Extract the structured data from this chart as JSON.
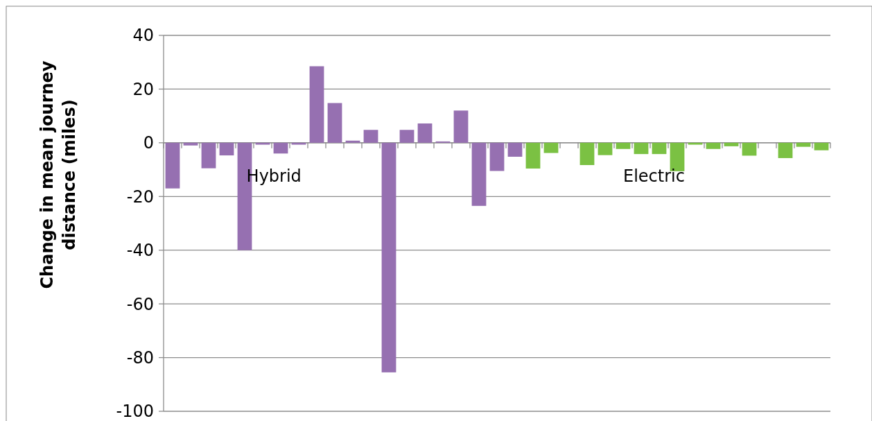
{
  "chart_data": {
    "type": "bar",
    "ylabel": "Change in mean journey distance (miles)",
    "categories": [
      null,
      null,
      null,
      null,
      null,
      null,
      null,
      null,
      null,
      null,
      null,
      null,
      null,
      null,
      null,
      null,
      null,
      null,
      null,
      null,
      null,
      null,
      null,
      null,
      null,
      null,
      null,
      null,
      null,
      null,
      null,
      null,
      null,
      null,
      null,
      null,
      null
    ],
    "values": [
      -17,
      -1,
      -9.5,
      -4.7,
      -40,
      -0.7,
      -4,
      -0.7,
      28.5,
      14.8,
      0.8,
      4.8,
      -85.5,
      4.8,
      7.2,
      0.5,
      12,
      -23.5,
      -10.5,
      -5.2,
      -9.6,
      -3.8,
      null,
      -8.3,
      -4.6,
      -2.3,
      -4.2,
      -4.2,
      -10.6,
      -0.7,
      -2.3,
      -1.3,
      -4.8,
      null,
      -5.7,
      -1.5,
      -2.8
    ],
    "colors": [
      "#9670b1",
      "#9670b1",
      "#9670b1",
      "#9670b1",
      "#9670b1",
      "#9670b1",
      "#9670b1",
      "#9670b1",
      "#9670b1",
      "#9670b1",
      "#9670b1",
      "#9670b1",
      "#9670b1",
      "#9670b1",
      "#9670b1",
      "#9670b1",
      "#9670b1",
      "#9670b1",
      "#9670b1",
      "#9670b1",
      "#7bc143",
      "#7bc143",
      null,
      "#7bc143",
      "#7bc143",
      "#7bc143",
      "#7bc143",
      "#7bc143",
      "#7bc143",
      "#7bc143",
      "#7bc143",
      "#7bc143",
      "#7bc143",
      null,
      "#7bc143",
      "#7bc143",
      "#7bc143"
    ],
    "annotations": [
      "Hybrid",
      "Electric"
    ],
    "ylim": [
      -100,
      40
    ],
    "yticks": [
      -100,
      -80,
      -60,
      -40,
      -20,
      0,
      20,
      40
    ],
    "grid": "y"
  }
}
